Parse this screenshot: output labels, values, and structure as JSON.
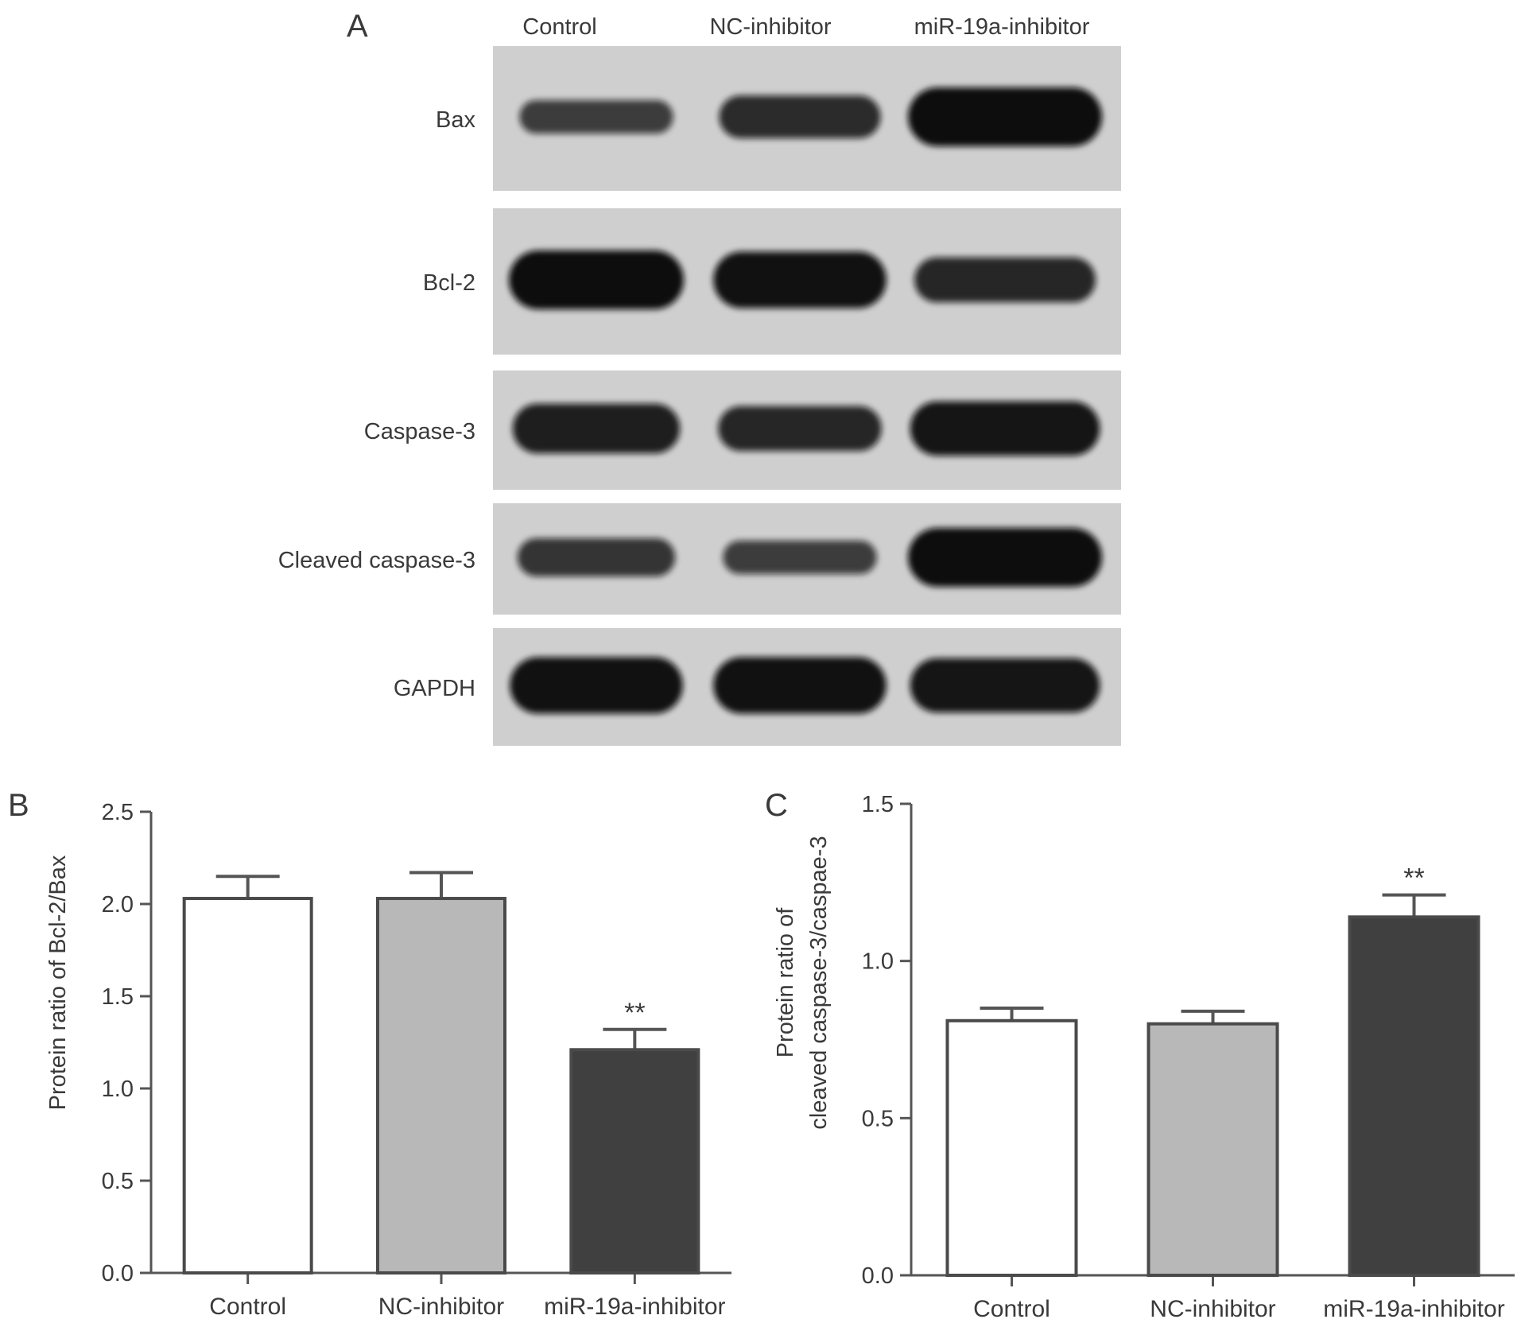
{
  "panels": {
    "a": "A",
    "b": "B",
    "c": "C"
  },
  "blot": {
    "lanes": [
      "Control",
      "NC-inhibitor",
      "miR-19a-inhibitor"
    ],
    "rows": [
      {
        "label": "Bax",
        "intensity": [
          0.45,
          0.65,
          1.0
        ]
      },
      {
        "label": "Bcl-2",
        "intensity": [
          1.0,
          0.95,
          0.7
        ]
      },
      {
        "label": "Caspase-3",
        "intensity": [
          0.8,
          0.7,
          0.9
        ]
      },
      {
        "label": "Cleaved caspase-3",
        "intensity": [
          0.55,
          0.45,
          1.0
        ]
      },
      {
        "label": "GAPDH",
        "intensity": [
          0.95,
          0.95,
          0.9
        ]
      }
    ]
  },
  "colors": {
    "control": "#ffffff",
    "nc_inhibitor": "#b8b8b8",
    "mir_inhibitor": "#404040",
    "axis": "#555555",
    "membrane": "#cfcfcf",
    "band": "#0e0e0e"
  },
  "chart_data": [
    {
      "type": "bar",
      "panel": "B",
      "title": "",
      "categories": [
        "Control",
        "NC-inhibitor",
        "miR-19a-inhibitor"
      ],
      "values": [
        2.03,
        2.03,
        1.21
      ],
      "errors": [
        0.12,
        0.14,
        0.11
      ],
      "annotations": [
        "",
        "",
        "**"
      ],
      "xlabel": "",
      "ylabel": "Protein ratio of Bcl-2/Bax",
      "ylim": [
        0,
        2.5
      ],
      "yticks": [
        "0.0",
        "0.5",
        "1.0",
        "1.5",
        "2.0",
        "2.5"
      ],
      "grid": false
    },
    {
      "type": "bar",
      "panel": "C",
      "title": "",
      "categories": [
        "Control",
        "NC-inhibitor",
        "miR-19a-inhibitor"
      ],
      "values": [
        0.81,
        0.8,
        1.14
      ],
      "errors": [
        0.04,
        0.04,
        0.07
      ],
      "annotations": [
        "",
        "",
        "**"
      ],
      "xlabel": "",
      "ylabel": "Protein ratio of cleaved caspase-3/caspae-3",
      "ylabel_lines": [
        "Protein ratio of",
        "cleaved caspase-3/caspae-3"
      ],
      "ylim": [
        0,
        1.5
      ],
      "yticks": [
        "0.0",
        "0.5",
        "1.0",
        "1.5"
      ],
      "grid": false
    }
  ]
}
